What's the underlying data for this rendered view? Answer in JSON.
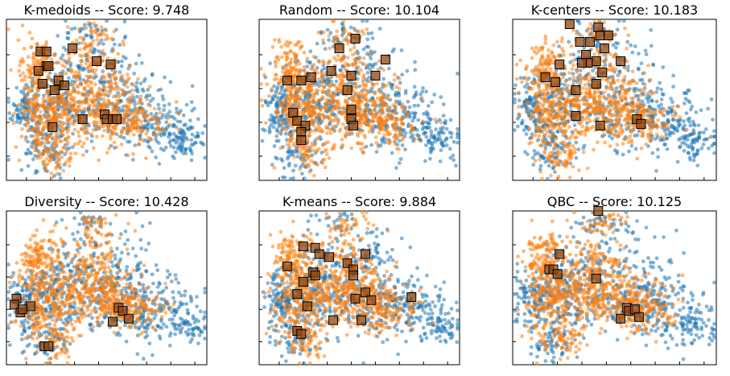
{
  "chart_data": [
    {
      "type": "scatter",
      "title": "K-medoids -- Score: 9.748",
      "xlabel": "",
      "ylabel": "",
      "grid": false,
      "selected": [
        [
          0.2,
          0.71
        ],
        [
          0.17,
          0.8
        ],
        [
          0.2,
          0.8
        ],
        [
          0.21,
          0.71
        ],
        [
          0.16,
          0.68
        ],
        [
          0.33,
          0.82
        ],
        [
          0.45,
          0.74
        ],
        [
          0.52,
          0.72
        ],
        [
          0.18,
          0.6
        ],
        [
          0.26,
          0.62
        ],
        [
          0.29,
          0.59
        ],
        [
          0.24,
          0.56
        ],
        [
          0.49,
          0.41
        ],
        [
          0.5,
          0.38
        ],
        [
          0.53,
          0.38
        ],
        [
          0.55,
          0.38
        ],
        [
          0.38,
          0.38
        ],
        [
          0.23,
          0.33
        ]
      ]
    },
    {
      "type": "scatter",
      "title": "Random -- Score: 10.104",
      "xlabel": "",
      "ylabel": "",
      "grid": false,
      "selected": [
        [
          0.48,
          0.88
        ],
        [
          0.4,
          0.82
        ],
        [
          0.63,
          0.75
        ],
        [
          0.36,
          0.68
        ],
        [
          0.46,
          0.65
        ],
        [
          0.58,
          0.65
        ],
        [
          0.14,
          0.62
        ],
        [
          0.21,
          0.62
        ],
        [
          0.26,
          0.64
        ],
        [
          0.44,
          0.56
        ],
        [
          0.46,
          0.44
        ],
        [
          0.17,
          0.42
        ],
        [
          0.19,
          0.37
        ],
        [
          0.23,
          0.34
        ],
        [
          0.46,
          0.38
        ],
        [
          0.47,
          0.34
        ],
        [
          0.21,
          0.3
        ],
        [
          0.21,
          0.25
        ]
      ]
    },
    {
      "type": "scatter",
      "title": "K-centers -- Score: 10.183",
      "xlabel": "",
      "ylabel": "",
      "grid": false,
      "selected": [
        [
          0.28,
          0.97
        ],
        [
          0.42,
          0.95
        ],
        [
          0.43,
          0.9
        ],
        [
          0.45,
          0.82
        ],
        [
          0.33,
          0.86
        ],
        [
          0.47,
          0.9
        ],
        [
          0.38,
          0.86
        ],
        [
          0.41,
          0.74
        ],
        [
          0.36,
          0.78
        ],
        [
          0.23,
          0.72
        ],
        [
          0.37,
          0.73
        ],
        [
          0.34,
          0.73
        ],
        [
          0.53,
          0.74
        ],
        [
          0.44,
          0.67
        ],
        [
          0.16,
          0.64
        ],
        [
          0.21,
          0.61
        ],
        [
          0.31,
          0.56
        ],
        [
          0.41,
          0.6
        ],
        [
          0.61,
          0.38
        ],
        [
          0.63,
          0.35
        ],
        [
          0.31,
          0.4
        ],
        [
          0.43,
          0.34
        ]
      ]
    },
    {
      "type": "scatter",
      "title": "Diversity -- Score: 10.428",
      "xlabel": "",
      "ylabel": "",
      "grid": false,
      "selected": [
        [
          0.05,
          0.43
        ],
        [
          0.04,
          0.39
        ],
        [
          0.07,
          0.34
        ],
        [
          0.12,
          0.38
        ],
        [
          0.08,
          0.36
        ],
        [
          0.56,
          0.37
        ],
        [
          0.58,
          0.35
        ],
        [
          0.61,
          0.3
        ],
        [
          0.53,
          0.28
        ],
        [
          0.19,
          0.12
        ],
        [
          0.21,
          0.12
        ]
      ]
    },
    {
      "type": "scatter",
      "title": "K-means -- Score: 9.884",
      "xlabel": "",
      "ylabel": "",
      "grid": false,
      "selected": [
        [
          0.28,
          0.76
        ],
        [
          0.22,
          0.77
        ],
        [
          0.35,
          0.7
        ],
        [
          0.14,
          0.64
        ],
        [
          0.3,
          0.72
        ],
        [
          0.44,
          0.66
        ],
        [
          0.53,
          0.72
        ],
        [
          0.47,
          0.62
        ],
        [
          0.47,
          0.58
        ],
        [
          0.22,
          0.54
        ],
        [
          0.27,
          0.6
        ],
        [
          0.28,
          0.58
        ],
        [
          0.53,
          0.47
        ],
        [
          0.48,
          0.43
        ],
        [
          0.56,
          0.42
        ],
        [
          0.76,
          0.44
        ],
        [
          0.19,
          0.46
        ],
        [
          0.24,
          0.38
        ],
        [
          0.37,
          0.29
        ],
        [
          0.51,
          0.29
        ],
        [
          0.19,
          0.22
        ],
        [
          0.21,
          0.2
        ]
      ]
    },
    {
      "type": "scatter",
      "title": "QBC -- Score: 10.125",
      "xlabel": "",
      "ylabel": "",
      "grid": false,
      "selected": [
        [
          0.42,
          1.0
        ],
        [
          0.23,
          0.72
        ],
        [
          0.18,
          0.62
        ],
        [
          0.2,
          0.62
        ],
        [
          0.22,
          0.59
        ],
        [
          0.41,
          0.56
        ],
        [
          0.56,
          0.37
        ],
        [
          0.57,
          0.35
        ],
        [
          0.6,
          0.36
        ],
        [
          0.62,
          0.31
        ],
        [
          0.53,
          0.3
        ]
      ]
    }
  ],
  "colors": {
    "series_blue": "#1f77b4",
    "series_orange": "#ff7f0e",
    "marker_fill": "#8b4513",
    "marker_edge": "#000000",
    "axes": "#000000",
    "background": "#ffffff"
  }
}
